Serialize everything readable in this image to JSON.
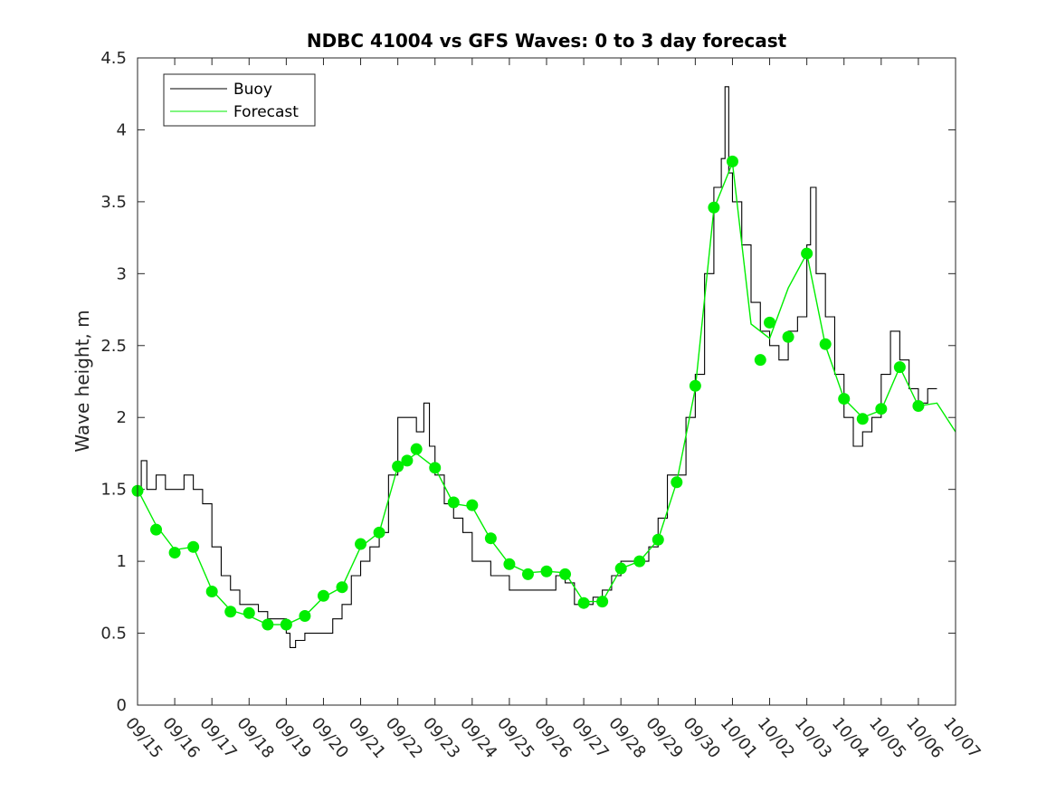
{
  "chart_data": {
    "type": "line",
    "title": "NDBC 41004 vs GFS Waves: 0 to 3 day forecast",
    "xlabel": "",
    "ylabel": "Wave height, m",
    "ylim": [
      0,
      4.5
    ],
    "yticks": [
      "0",
      "0.5",
      "1",
      "1.5",
      "2",
      "2.5",
      "3",
      "3.5",
      "4",
      "4.5"
    ],
    "xlim": [
      0,
      22
    ],
    "xtick_labels": [
      "09/15",
      "09/16",
      "09/17",
      "09/18",
      "09/19",
      "09/20",
      "09/21",
      "09/22",
      "09/23",
      "09/24",
      "09/25",
      "09/26",
      "09/27",
      "09/28",
      "09/29",
      "09/30",
      "10/01",
      "10/02",
      "10/03",
      "10/04",
      "10/05",
      "10/06",
      "10/07"
    ],
    "grid": false,
    "legend": {
      "position": "top-left",
      "entries": [
        "Buoy",
        "Forecast"
      ]
    },
    "colors": {
      "buoy": "#000000",
      "forecast": "#00ee00",
      "marker": "#00ee00"
    },
    "series": [
      {
        "name": "Buoy",
        "x": [
          0,
          0.1,
          0.25,
          0.5,
          0.75,
          1,
          1.25,
          1.5,
          1.75,
          2,
          2.25,
          2.5,
          2.75,
          3,
          3.25,
          3.5,
          3.75,
          4,
          4.1,
          4.25,
          4.5,
          4.75,
          5,
          5.25,
          5.5,
          5.75,
          6,
          6.25,
          6.5,
          6.75,
          7,
          7.25,
          7.5,
          7.7,
          7.85,
          8,
          8.25,
          8.5,
          8.75,
          9,
          9.25,
          9.5,
          9.75,
          10,
          10.25,
          10.5,
          10.75,
          11,
          11.25,
          11.5,
          11.75,
          12,
          12.25,
          12.5,
          12.75,
          13,
          13.25,
          13.5,
          13.75,
          14,
          14.25,
          14.5,
          14.75,
          15,
          15.25,
          15.5,
          15.7,
          15.8,
          15.9,
          16,
          16.25,
          16.5,
          16.75,
          17,
          17.25,
          17.5,
          17.75,
          18,
          18.1,
          18.25,
          18.5,
          18.75,
          19,
          19.25,
          19.5,
          19.75,
          20,
          20.25,
          20.5,
          20.75,
          21,
          21.25,
          21.5
        ],
        "y": [
          1.5,
          1.7,
          1.5,
          1.6,
          1.5,
          1.5,
          1.6,
          1.5,
          1.4,
          1.1,
          0.9,
          0.8,
          0.7,
          0.7,
          0.65,
          0.6,
          0.6,
          0.5,
          0.4,
          0.45,
          0.5,
          0.5,
          0.5,
          0.6,
          0.7,
          0.9,
          1.0,
          1.1,
          1.2,
          1.6,
          2.0,
          2.0,
          1.9,
          2.1,
          1.8,
          1.6,
          1.4,
          1.3,
          1.2,
          1.0,
          1.0,
          0.9,
          0.9,
          0.8,
          0.8,
          0.8,
          0.8,
          0.8,
          0.9,
          0.85,
          0.7,
          0.7,
          0.75,
          0.8,
          0.9,
          1.0,
          1.0,
          1.0,
          1.1,
          1.3,
          1.6,
          1.6,
          2.0,
          2.3,
          3.0,
          3.6,
          3.8,
          4.3,
          3.7,
          3.5,
          3.2,
          2.8,
          2.6,
          2.5,
          2.4,
          2.6,
          2.7,
          3.2,
          3.6,
          3.0,
          2.7,
          2.3,
          2.0,
          1.8,
          1.9,
          2.0,
          2.3,
          2.6,
          2.4,
          2.2,
          2.1,
          2.2,
          2.2
        ]
      },
      {
        "name": "Forecast",
        "x": [
          0,
          0.5,
          1,
          1.5,
          2,
          2.5,
          3,
          3.5,
          4,
          4.5,
          5,
          5.5,
          6,
          6.5,
          7,
          7.5,
          8,
          8.5,
          9,
          9.5,
          10,
          10.5,
          11,
          11.5,
          12,
          12.5,
          13,
          13.5,
          14,
          14.5,
          15,
          15.5,
          16,
          16.5,
          17,
          17.5,
          18,
          18.5,
          19,
          19.5,
          20,
          20.5,
          21,
          21.5,
          22
        ],
        "y": [
          1.5,
          1.25,
          1.08,
          1.1,
          0.8,
          0.66,
          0.62,
          0.56,
          0.56,
          0.62,
          0.75,
          0.82,
          1.1,
          1.2,
          1.66,
          1.75,
          1.65,
          1.4,
          1.38,
          1.15,
          0.98,
          0.92,
          0.93,
          0.92,
          0.72,
          0.72,
          0.95,
          1.0,
          1.15,
          1.55,
          2.2,
          3.45,
          3.77,
          2.65,
          2.55,
          2.9,
          3.14,
          2.5,
          2.13,
          2.0,
          2.05,
          2.35,
          2.08,
          2.1,
          1.9
        ]
      }
    ],
    "markers": {
      "x": [
        0,
        0.5,
        1,
        1.5,
        2,
        2.5,
        3,
        3.5,
        4,
        4.5,
        5,
        5.5,
        6,
        6.5,
        7,
        7.25,
        7.5,
        8,
        8.5,
        9,
        9.5,
        10,
        10.5,
        11,
        11.5,
        12,
        12.5,
        13,
        13.5,
        14,
        14.5,
        15,
        15.5,
        16,
        16.75,
        17,
        17.5,
        18,
        18.5,
        19,
        19.5,
        20,
        20.5,
        21
      ],
      "y": [
        1.49,
        1.22,
        1.06,
        1.1,
        0.79,
        0.65,
        0.64,
        0.56,
        0.56,
        0.62,
        0.76,
        0.82,
        1.12,
        1.2,
        1.66,
        1.7,
        1.78,
        1.65,
        1.41,
        1.39,
        1.16,
        0.98,
        0.91,
        0.93,
        0.91,
        0.71,
        0.72,
        0.95,
        1.0,
        1.15,
        1.55,
        2.22,
        3.46,
        3.78,
        2.4,
        2.66,
        2.56,
        3.14,
        2.51,
        2.13,
        1.99,
        2.06,
        2.35,
        2.08
      ]
    }
  }
}
